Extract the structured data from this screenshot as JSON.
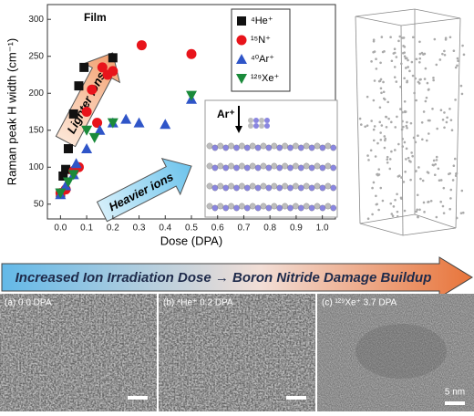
{
  "chart_data": {
    "type": "scatter",
    "xlabel": "Dose (DPA)",
    "ylabel": "Raman peak H width (cm⁻¹)",
    "annotations": [
      "Film",
      "Lighter ions",
      "Heavier ions",
      "Ar⁺"
    ],
    "xlim": [
      -0.05,
      1.05
    ],
    "ylim": [
      30,
      320
    ],
    "xticks": [
      {
        "value": 0,
        "label": "0.0"
      },
      {
        "value": 0.1,
        "label": "0.1"
      },
      {
        "value": 0.2,
        "label": "0.2"
      },
      {
        "value": 0.3,
        "label": "0.3"
      },
      {
        "value": 0.4,
        "label": "0.4"
      },
      {
        "value": 0.5,
        "label": "0.5"
      },
      {
        "value": 0.6,
        "label": "0.6"
      },
      {
        "value": 0.7,
        "label": "0.7"
      },
      {
        "value": 0.8,
        "label": "0.8"
      },
      {
        "value": 0.9,
        "label": "0.9"
      },
      {
        "value": 1,
        "label": "1.0"
      }
    ],
    "yticks": [
      50,
      100,
      150,
      200,
      250,
      300
    ],
    "legend": "upper right",
    "series": [
      {
        "name": "⁴He⁺",
        "color": "#111111",
        "marker": "square",
        "x": [
          0.0,
          0.01,
          0.02,
          0.03,
          0.05,
          0.07,
          0.09,
          0.2
        ],
        "values": [
          65,
          88,
          97,
          125,
          172,
          210,
          235,
          248
        ]
      },
      {
        "name": "¹⁵N⁺",
        "color": "#e8141b",
        "marker": "circle",
        "x": [
          0.0,
          0.02,
          0.05,
          0.07,
          0.1,
          0.12,
          0.14,
          0.16,
          0.18,
          0.2,
          0.31,
          0.5
        ],
        "values": [
          65,
          70,
          95,
          100,
          175,
          205,
          160,
          235,
          225,
          230,
          265,
          253
        ]
      },
      {
        "name": "⁴⁰Ar⁺",
        "color": "#2f55c8",
        "marker": "triangle",
        "x": [
          0.0,
          0.02,
          0.05,
          0.06,
          0.1,
          0.15,
          0.2,
          0.25,
          0.3,
          0.4,
          0.5
        ],
        "values": [
          63,
          75,
          90,
          105,
          125,
          150,
          160,
          165,
          160,
          158,
          192
        ]
      },
      {
        "name": "¹²⁹Xe⁺",
        "color": "#1a8a3a",
        "marker": "down-triangle",
        "x": [
          0.0,
          0.03,
          0.05,
          0.1,
          0.13,
          0.2,
          0.5
        ],
        "values": [
          65,
          80,
          90,
          150,
          140,
          160,
          197
        ]
      }
    ]
  },
  "banner": "Increased Ion Irradiation Dose → Boron Nitride Damage Buildup",
  "panels": [
    {
      "label": "(a) 0.0 DPA"
    },
    {
      "label": "(b) ⁴He⁺ 0.2 DPA"
    },
    {
      "label": "(c) ¹²⁹Xe⁺ 3.7 DPA",
      "scale": "5 nm"
    }
  ]
}
